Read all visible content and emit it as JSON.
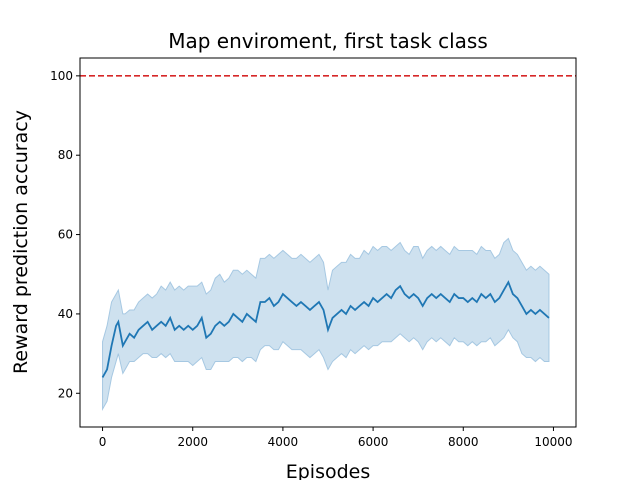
{
  "chart_data": {
    "type": "line",
    "title": "Map enviroment, first task class",
    "xlabel": "Episodes",
    "ylabel": "Reward prediction accuracy",
    "xlim": [
      -500,
      10500
    ],
    "ylim": [
      11.5,
      104.5
    ],
    "xticks": [
      0,
      2000,
      4000,
      6000,
      8000,
      10000
    ],
    "yticks": [
      20,
      40,
      60,
      80,
      100
    ],
    "grid": false,
    "legend": "none",
    "reference_line": {
      "y": 100,
      "color": "#d62728",
      "style": "dashed"
    },
    "series": [
      {
        "color": "#1f77b4",
        "band_color": "#a6c8e2",
        "x": [
          0,
          100,
          200,
          300,
          350,
          450,
          500,
          600,
          700,
          800,
          900,
          1000,
          1100,
          1200,
          1300,
          1400,
          1500,
          1600,
          1700,
          1800,
          1900,
          2000,
          2100,
          2200,
          2300,
          2400,
          2500,
          2600,
          2700,
          2800,
          2900,
          3000,
          3100,
          3200,
          3300,
          3400,
          3500,
          3600,
          3700,
          3800,
          3900,
          4000,
          4100,
          4200,
          4300,
          4400,
          4500,
          4600,
          4700,
          4800,
          4900,
          5000,
          5100,
          5200,
          5300,
          5400,
          5500,
          5600,
          5700,
          5800,
          5900,
          6000,
          6100,
          6200,
          6300,
          6400,
          6500,
          6600,
          6700,
          6800,
          6900,
          7000,
          7100,
          7200,
          7300,
          7400,
          7500,
          7600,
          7700,
          7800,
          7900,
          8000,
          8100,
          8200,
          8300,
          8400,
          8500,
          8600,
          8700,
          8800,
          8900,
          9000,
          9100,
          9200,
          9300,
          9400,
          9500,
          9600,
          9700,
          9800,
          9900
        ],
        "mean": [
          24,
          26,
          32,
          37,
          38,
          32,
          33,
          35,
          34,
          36,
          37,
          38,
          36,
          37,
          38,
          37,
          39,
          36,
          37,
          36,
          37,
          36,
          37,
          39,
          34,
          35,
          37,
          38,
          37,
          38,
          40,
          39,
          38,
          40,
          39,
          38,
          43,
          43,
          44,
          42,
          43,
          45,
          44,
          43,
          42,
          43,
          42,
          41,
          42,
          43,
          41,
          36,
          39,
          40,
          41,
          40,
          42,
          41,
          42,
          43,
          42,
          44,
          43,
          44,
          45,
          44,
          46,
          47,
          45,
          44,
          45,
          44,
          42,
          44,
          45,
          44,
          45,
          44,
          43,
          45,
          44,
          44,
          43,
          44,
          43,
          45,
          44,
          45,
          43,
          44,
          46,
          48,
          45,
          44,
          42,
          40,
          41,
          40,
          41,
          40,
          39
        ],
        "upper": [
          33,
          37,
          43,
          45,
          46,
          40,
          40,
          41,
          41,
          43,
          44,
          45,
          44,
          45,
          47,
          46,
          48,
          46,
          47,
          46,
          47,
          47,
          47,
          48,
          45,
          46,
          49,
          50,
          48,
          49,
          51,
          51,
          50,
          51,
          50,
          49,
          54,
          54,
          55,
          54,
          55,
          56,
          55,
          54,
          54,
          55,
          54,
          53,
          54,
          55,
          53,
          46,
          51,
          52,
          53,
          53,
          55,
          54,
          54,
          56,
          55,
          57,
          56,
          57,
          57,
          56,
          57,
          58,
          56,
          55,
          57,
          57,
          54,
          56,
          57,
          56,
          57,
          56,
          55,
          57,
          56,
          56,
          56,
          56,
          55,
          57,
          56,
          56,
          54,
          55,
          58,
          59,
          56,
          55,
          53,
          51,
          52,
          51,
          52,
          51,
          50
        ],
        "lower": [
          16,
          18,
          24,
          28,
          30,
          25,
          26,
          28,
          28,
          29,
          30,
          30,
          29,
          29,
          30,
          29,
          30,
          28,
          28,
          28,
          28,
          27,
          28,
          29,
          26,
          26,
          28,
          28,
          28,
          28,
          29,
          29,
          28,
          29,
          29,
          28,
          31,
          32,
          32,
          31,
          31,
          33,
          32,
          31,
          31,
          31,
          30,
          29,
          30,
          31,
          29,
          26,
          28,
          29,
          30,
          29,
          31,
          30,
          31,
          32,
          31,
          32,
          32,
          33,
          33,
          33,
          34,
          35,
          34,
          33,
          34,
          33,
          31,
          33,
          34,
          33,
          34,
          33,
          32,
          34,
          33,
          33,
          32,
          33,
          32,
          33,
          33,
          34,
          32,
          33,
          34,
          36,
          34,
          33,
          30,
          29,
          29,
          28,
          29,
          28,
          28
        ]
      }
    ]
  }
}
